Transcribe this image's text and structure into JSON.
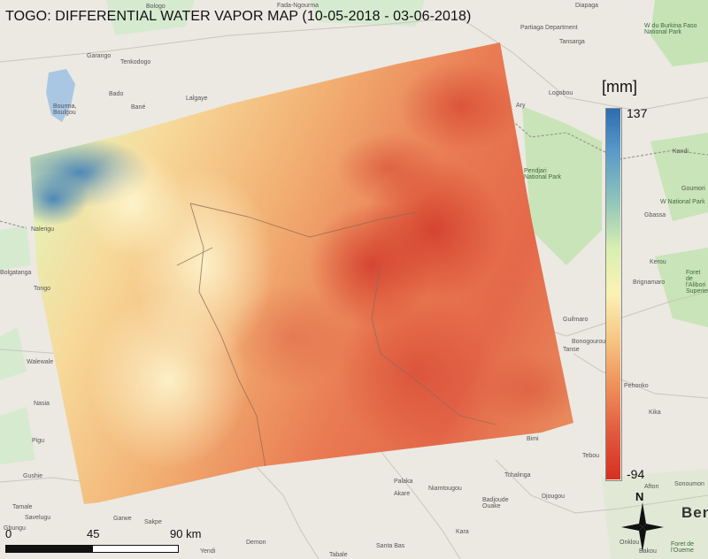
{
  "title": "TOGO: DIFFERENTIAL WATER VAPOR MAP (10-05-2018 - 03-06-2018)",
  "legend": {
    "unit": "[mm]",
    "max_label": "137",
    "min_label": "-94",
    "max_value": 137,
    "min_value": -94,
    "colors": [
      "#2b6cb0",
      "#5a9bc9",
      "#8fc4b9",
      "#d9efb0",
      "#fbf2b5",
      "#f6c784",
      "#ef9058",
      "#e0583d",
      "#d7301f"
    ]
  },
  "scalebar": {
    "labels": [
      "0",
      "45",
      "90 km"
    ],
    "values_km": [
      0,
      45,
      90
    ]
  },
  "north": {
    "letter": "N"
  },
  "places": [
    {
      "name": "Bologo",
      "key": "bologo"
    },
    {
      "name": "Fada-Ngourma",
      "key": "fada"
    },
    {
      "name": "Diapaga",
      "key": "diapaga"
    },
    {
      "name": "Partiaga Department",
      "key": "partiaga"
    },
    {
      "name": "Tansarga",
      "key": "tansarga"
    },
    {
      "name": "W du Burkina Faso National Park",
      "key": "wpark"
    },
    {
      "name": "Garango",
      "key": "garango"
    },
    {
      "name": "Tenkodogo",
      "key": "tenkodogo"
    },
    {
      "name": "Bado",
      "key": "bado"
    },
    {
      "name": "Bourma, Boulgou",
      "key": "bourma"
    },
    {
      "name": "Bané",
      "key": "bane"
    },
    {
      "name": "Lalgaye",
      "key": "lalgaye"
    },
    {
      "name": "Logobou",
      "key": "logobou"
    },
    {
      "name": "Ary",
      "key": "ary"
    },
    {
      "name": "Nalerigu",
      "key": "nalerigu"
    },
    {
      "name": "Bolgatanga",
      "key": "bolgatanga"
    },
    {
      "name": "Tongo",
      "key": "tongo"
    },
    {
      "name": "Walewale",
      "key": "walewale"
    },
    {
      "name": "Nasia",
      "key": "nasia"
    },
    {
      "name": "Pigu",
      "key": "pigu"
    },
    {
      "name": "Gushie",
      "key": "gushie"
    },
    {
      "name": "Tamale",
      "key": "tamale"
    },
    {
      "name": "Savelugu",
      "key": "savelugu"
    },
    {
      "name": "Gbungu",
      "key": "gbungu"
    },
    {
      "name": "Garwe",
      "key": "garwe"
    },
    {
      "name": "Sakpe",
      "key": "sakpe"
    },
    {
      "name": "Yendi",
      "key": "yendi"
    },
    {
      "name": "Demon",
      "key": "demon"
    },
    {
      "name": "Tabale",
      "key": "tabale"
    },
    {
      "name": "Santa Bas",
      "key": "santabas"
    },
    {
      "name": "Kara",
      "key": "kara"
    },
    {
      "name": "Palaka",
      "key": "palaka"
    },
    {
      "name": "Akare",
      "key": "akare"
    },
    {
      "name": "Niamtougou",
      "key": "niamtougou"
    },
    {
      "name": "Tchalinga",
      "key": "tchalinga"
    },
    {
      "name": "Djougou",
      "key": "djougou"
    },
    {
      "name": "Badjoude Ouake",
      "key": "badjoude"
    },
    {
      "name": "Afton",
      "key": "afton"
    },
    {
      "name": "Sonoumon",
      "key": "sonoumon"
    },
    {
      "name": "Ben",
      "key": "ben"
    },
    {
      "name": "Foret de l'Oueme",
      "key": "oueme"
    },
    {
      "name": "Bakou",
      "key": "bakou"
    },
    {
      "name": "Onklou",
      "key": "onklou"
    },
    {
      "name": "Kika",
      "key": "kika"
    },
    {
      "name": "Tebou",
      "key": "tebou"
    },
    {
      "name": "Bimi",
      "key": "bimi"
    },
    {
      "name": "Guilmaro",
      "key": "guilmaro"
    },
    {
      "name": "Tanse",
      "key": "tanse"
    },
    {
      "name": "Bonogourou",
      "key": "bonogourou"
    },
    {
      "name": "Kerou",
      "key": "kerou"
    },
    {
      "name": "Brignamaro",
      "key": "brignamaro"
    },
    {
      "name": "Gbassa",
      "key": "gbassa"
    },
    {
      "name": "Goumori",
      "key": "goumori"
    },
    {
      "name": "Pendjari National Park",
      "key": "pendjari"
    },
    {
      "name": "Foret de l'Alibori Superieur",
      "key": "alibori"
    },
    {
      "name": "Pehonko",
      "key": "pehonko"
    },
    {
      "name": "W National Park",
      "key": "wnatpark"
    },
    {
      "name": "Kandi",
      "key": "kandi"
    }
  ]
}
